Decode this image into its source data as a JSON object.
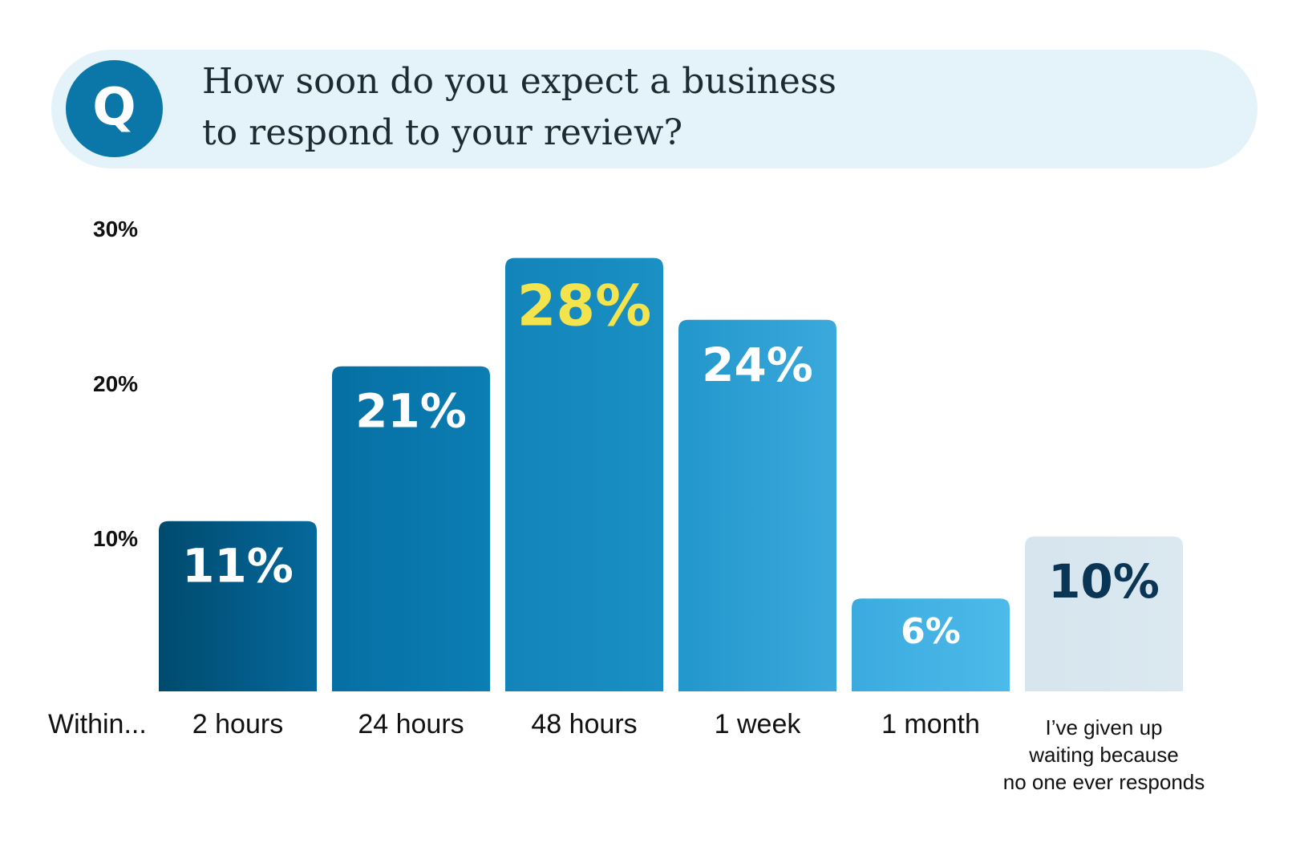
{
  "question": {
    "badge_letter": "Q",
    "line1": "How soon do you expect a business",
    "line2": "to respond to your review?"
  },
  "chart_data": {
    "type": "bar",
    "title": "How soon do you expect a business to respond to your review?",
    "xlabel": "Within...",
    "ylabel": "",
    "ylim": [
      0,
      30
    ],
    "y_ticks": [
      "10%",
      "20%",
      "30%"
    ],
    "grid": false,
    "categories": [
      "2 hours",
      "24 hours",
      "48 hours",
      "1 week",
      "1 month",
      "I’ve given up waiting because no one ever responds"
    ],
    "category_lines": [
      [
        "2 hours"
      ],
      [
        "24 hours"
      ],
      [
        "48 hours"
      ],
      [
        "1 week"
      ],
      [
        "1 month"
      ],
      [
        "I’ve given up",
        "waiting because",
        "no one ever responds"
      ]
    ],
    "values": [
      11,
      21,
      28,
      24,
      6,
      10
    ],
    "data_labels": [
      "11%",
      "21%",
      "28%",
      "24%",
      "6%",
      "10%"
    ],
    "bar_colors": [
      [
        "#004a6e",
        "#05699c"
      ],
      [
        "#066fa3",
        "#0b7eb3"
      ],
      [
        "#1284ba",
        "#1a90c4"
      ],
      [
        "#2297cb",
        "#3ba9dc"
      ],
      [
        "#3baade",
        "#4cbbea"
      ],
      [
        "#d6e5ee",
        "#dbe8f0"
      ]
    ],
    "label_colors": [
      "#ffffff",
      "#ffffff",
      "#f3e34d",
      "#ffffff",
      "#ffffff",
      "#0b3554"
    ]
  }
}
